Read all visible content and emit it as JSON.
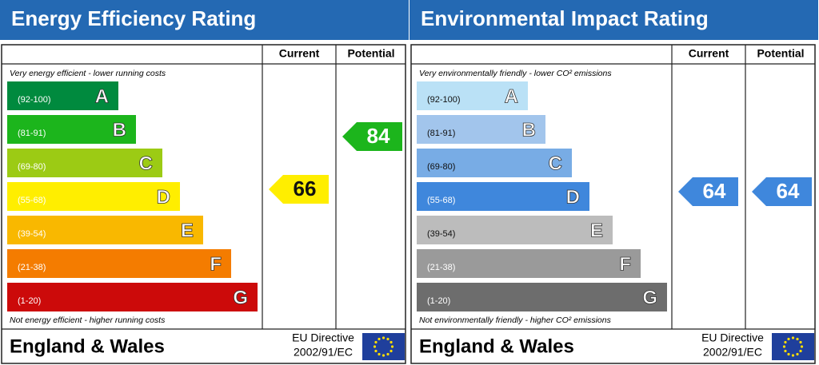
{
  "panels": [
    {
      "title": "Energy Efficiency Rating",
      "columns": [
        "Current",
        "Potential"
      ],
      "top_note": "Very energy efficient - lower running costs",
      "bottom_note": "Not energy efficient - higher running costs",
      "bands": [
        {
          "range": "(92-100)",
          "letter": "A",
          "color": "#008a3e"
        },
        {
          "range": "(81-91)",
          "letter": "B",
          "color": "#1cb51c"
        },
        {
          "range": "(69-80)",
          "letter": "C",
          "color": "#9ccb14"
        },
        {
          "range": "(55-68)",
          "letter": "D",
          "color": "#ffee00"
        },
        {
          "range": "(39-54)",
          "letter": "E",
          "color": "#f9b800"
        },
        {
          "range": "(21-38)",
          "letter": "F",
          "color": "#f47c00"
        },
        {
          "range": "(1-20)",
          "letter": "G",
          "color": "#cc0a0a"
        }
      ],
      "current": 66,
      "current_color": "#ffee00",
      "potential": 84,
      "potential_color": "#1cb51c",
      "region": "England & Wales",
      "directive": [
        "EU Directive",
        "2002/91/EC"
      ]
    },
    {
      "title": "Environmental Impact Rating",
      "columns": [
        "Current",
        "Potential"
      ],
      "top_note": "Very environmentally friendly - lower CO² emissions",
      "bottom_note": "Not environmentally friendly - higher CO² emissions",
      "bands": [
        {
          "range": "(92-100)",
          "letter": "A",
          "color": "#bae1f6"
        },
        {
          "range": "(81-91)",
          "letter": "B",
          "color": "#a2c5ec"
        },
        {
          "range": "(69-80)",
          "letter": "C",
          "color": "#78ace5"
        },
        {
          "range": "(55-68)",
          "letter": "D",
          "color": "#3f87dc"
        },
        {
          "range": "(39-54)",
          "letter": "E",
          "color": "#bcbcbc"
        },
        {
          "range": "(21-38)",
          "letter": "F",
          "color": "#9a9a9a"
        },
        {
          "range": "(1-20)",
          "letter": "G",
          "color": "#6d6d6d"
        }
      ],
      "current": 64,
      "current_color": "#3f87dc",
      "potential": 64,
      "potential_color": "#3f87dc",
      "region": "England & Wales",
      "directive": [
        "EU Directive",
        "2002/91/EC"
      ]
    }
  ]
}
